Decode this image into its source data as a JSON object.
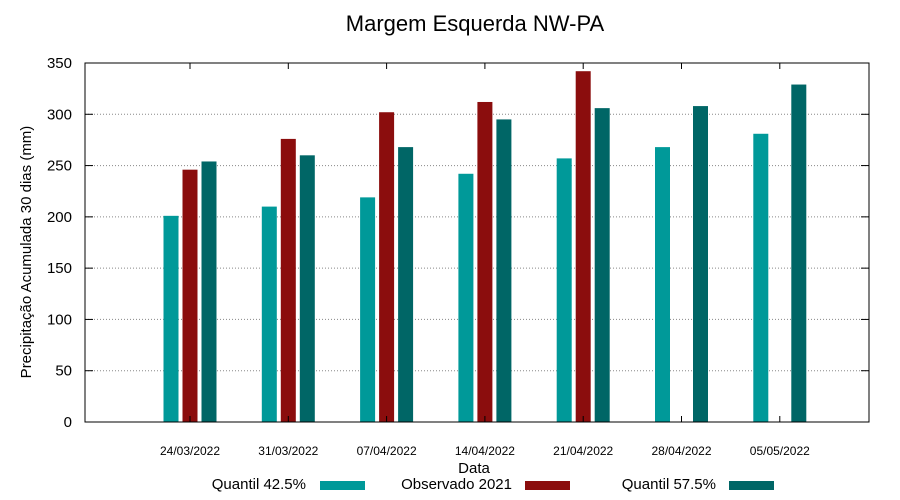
{
  "chart_data": {
    "type": "bar",
    "title": "Margem Esquerda NW-PA",
    "xlabel": "Data",
    "ylabel": "Precipitação Acumulada 30 dias (mm)",
    "ylim": [
      0,
      350
    ],
    "yticks": [
      0,
      50,
      100,
      150,
      200,
      250,
      300,
      350
    ],
    "grid": true,
    "legend_position": "bottom",
    "categories": [
      "24/03/2022",
      "31/03/2022",
      "07/04/2022",
      "14/04/2022",
      "21/04/2022",
      "28/04/2022",
      "05/05/2022"
    ],
    "series": [
      {
        "name": "Quantil 42.5%",
        "color": "#009999",
        "values": [
          201,
          210,
          219,
          242,
          257,
          268,
          281
        ]
      },
      {
        "name": "Observado 2021",
        "color": "#8b0d0d",
        "values": [
          246,
          276,
          302,
          312,
          342,
          null,
          null
        ]
      },
      {
        "name": "Quantil 57.5%",
        "color": "#006666",
        "values": [
          254,
          260,
          268,
          295,
          306,
          308,
          329
        ]
      }
    ]
  }
}
